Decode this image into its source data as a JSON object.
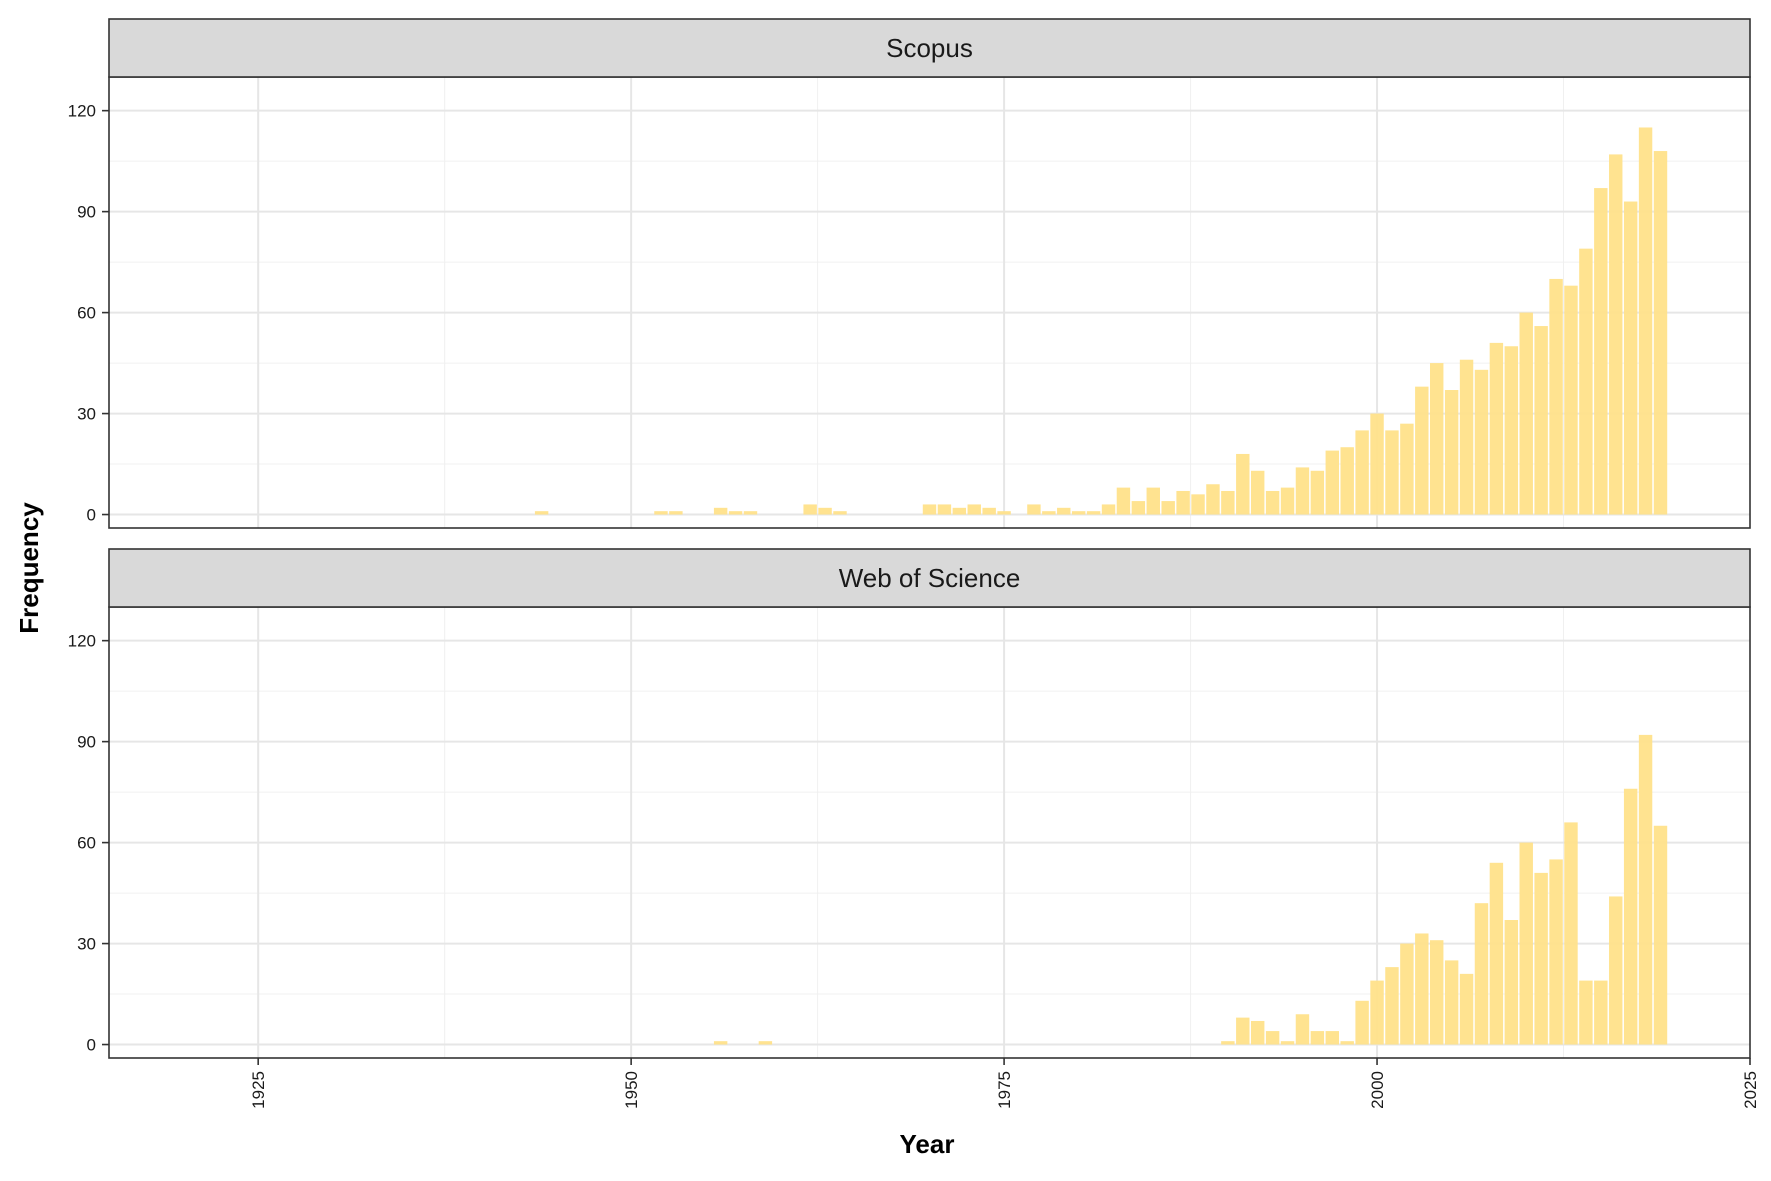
{
  "chart_data": {
    "type": "bar",
    "xlabel": "Year",
    "ylabel": "Frequency",
    "xlim": [
      1915,
      2025
    ],
    "ylim": [
      -4,
      130
    ],
    "x_ticks": [
      1925,
      1950,
      1975,
      2000,
      2025
    ],
    "y_ticks": [
      0,
      30,
      60,
      90,
      120
    ],
    "bar_color": "#FFE18A",
    "grid": true,
    "panels": [
      {
        "title": "Scopus",
        "x": [
          1944,
          1952,
          1953,
          1956,
          1957,
          1958,
          1962,
          1963,
          1964,
          1970,
          1971,
          1972,
          1973,
          1974,
          1975,
          1977,
          1978,
          1979,
          1980,
          1981,
          1982,
          1983,
          1984,
          1985,
          1986,
          1987,
          1988,
          1989,
          1990,
          1991,
          1992,
          1993,
          1994,
          1995,
          1996,
          1997,
          1998,
          1999,
          2000,
          2001,
          2002,
          2003,
          2004,
          2005,
          2006,
          2007,
          2008,
          2009,
          2010,
          2011,
          2012,
          2013,
          2014,
          2015,
          2016,
          2017,
          2018,
          2019
        ],
        "values": [
          1,
          1,
          1,
          2,
          1,
          1,
          3,
          2,
          1,
          3,
          3,
          2,
          3,
          2,
          1,
          3,
          1,
          2,
          1,
          1,
          3,
          8,
          4,
          8,
          4,
          7,
          6,
          9,
          7,
          18,
          13,
          7,
          8,
          14,
          13,
          19,
          20,
          25,
          30,
          25,
          27,
          38,
          45,
          37,
          46,
          43,
          51,
          50,
          60,
          56,
          70,
          68,
          79,
          97,
          107,
          93,
          115,
          108
        ]
      },
      {
        "title": "Web of Science",
        "x": [
          1956,
          1959,
          1990,
          1991,
          1992,
          1993,
          1994,
          1995,
          1996,
          1997,
          1998,
          1999,
          2000,
          2001,
          2002,
          2003,
          2004,
          2005,
          2006,
          2007,
          2008,
          2009,
          2010,
          2011,
          2012,
          2013,
          2014,
          2015,
          2016,
          2017,
          2018,
          2019
        ],
        "values": [
          1,
          1,
          1,
          8,
          7,
          4,
          1,
          9,
          4,
          4,
          1,
          13,
          19,
          23,
          30,
          33,
          31,
          25,
          21,
          42,
          54,
          37,
          60,
          51,
          55,
          66,
          19,
          19,
          44,
          76,
          92,
          65
        ]
      }
    ]
  }
}
